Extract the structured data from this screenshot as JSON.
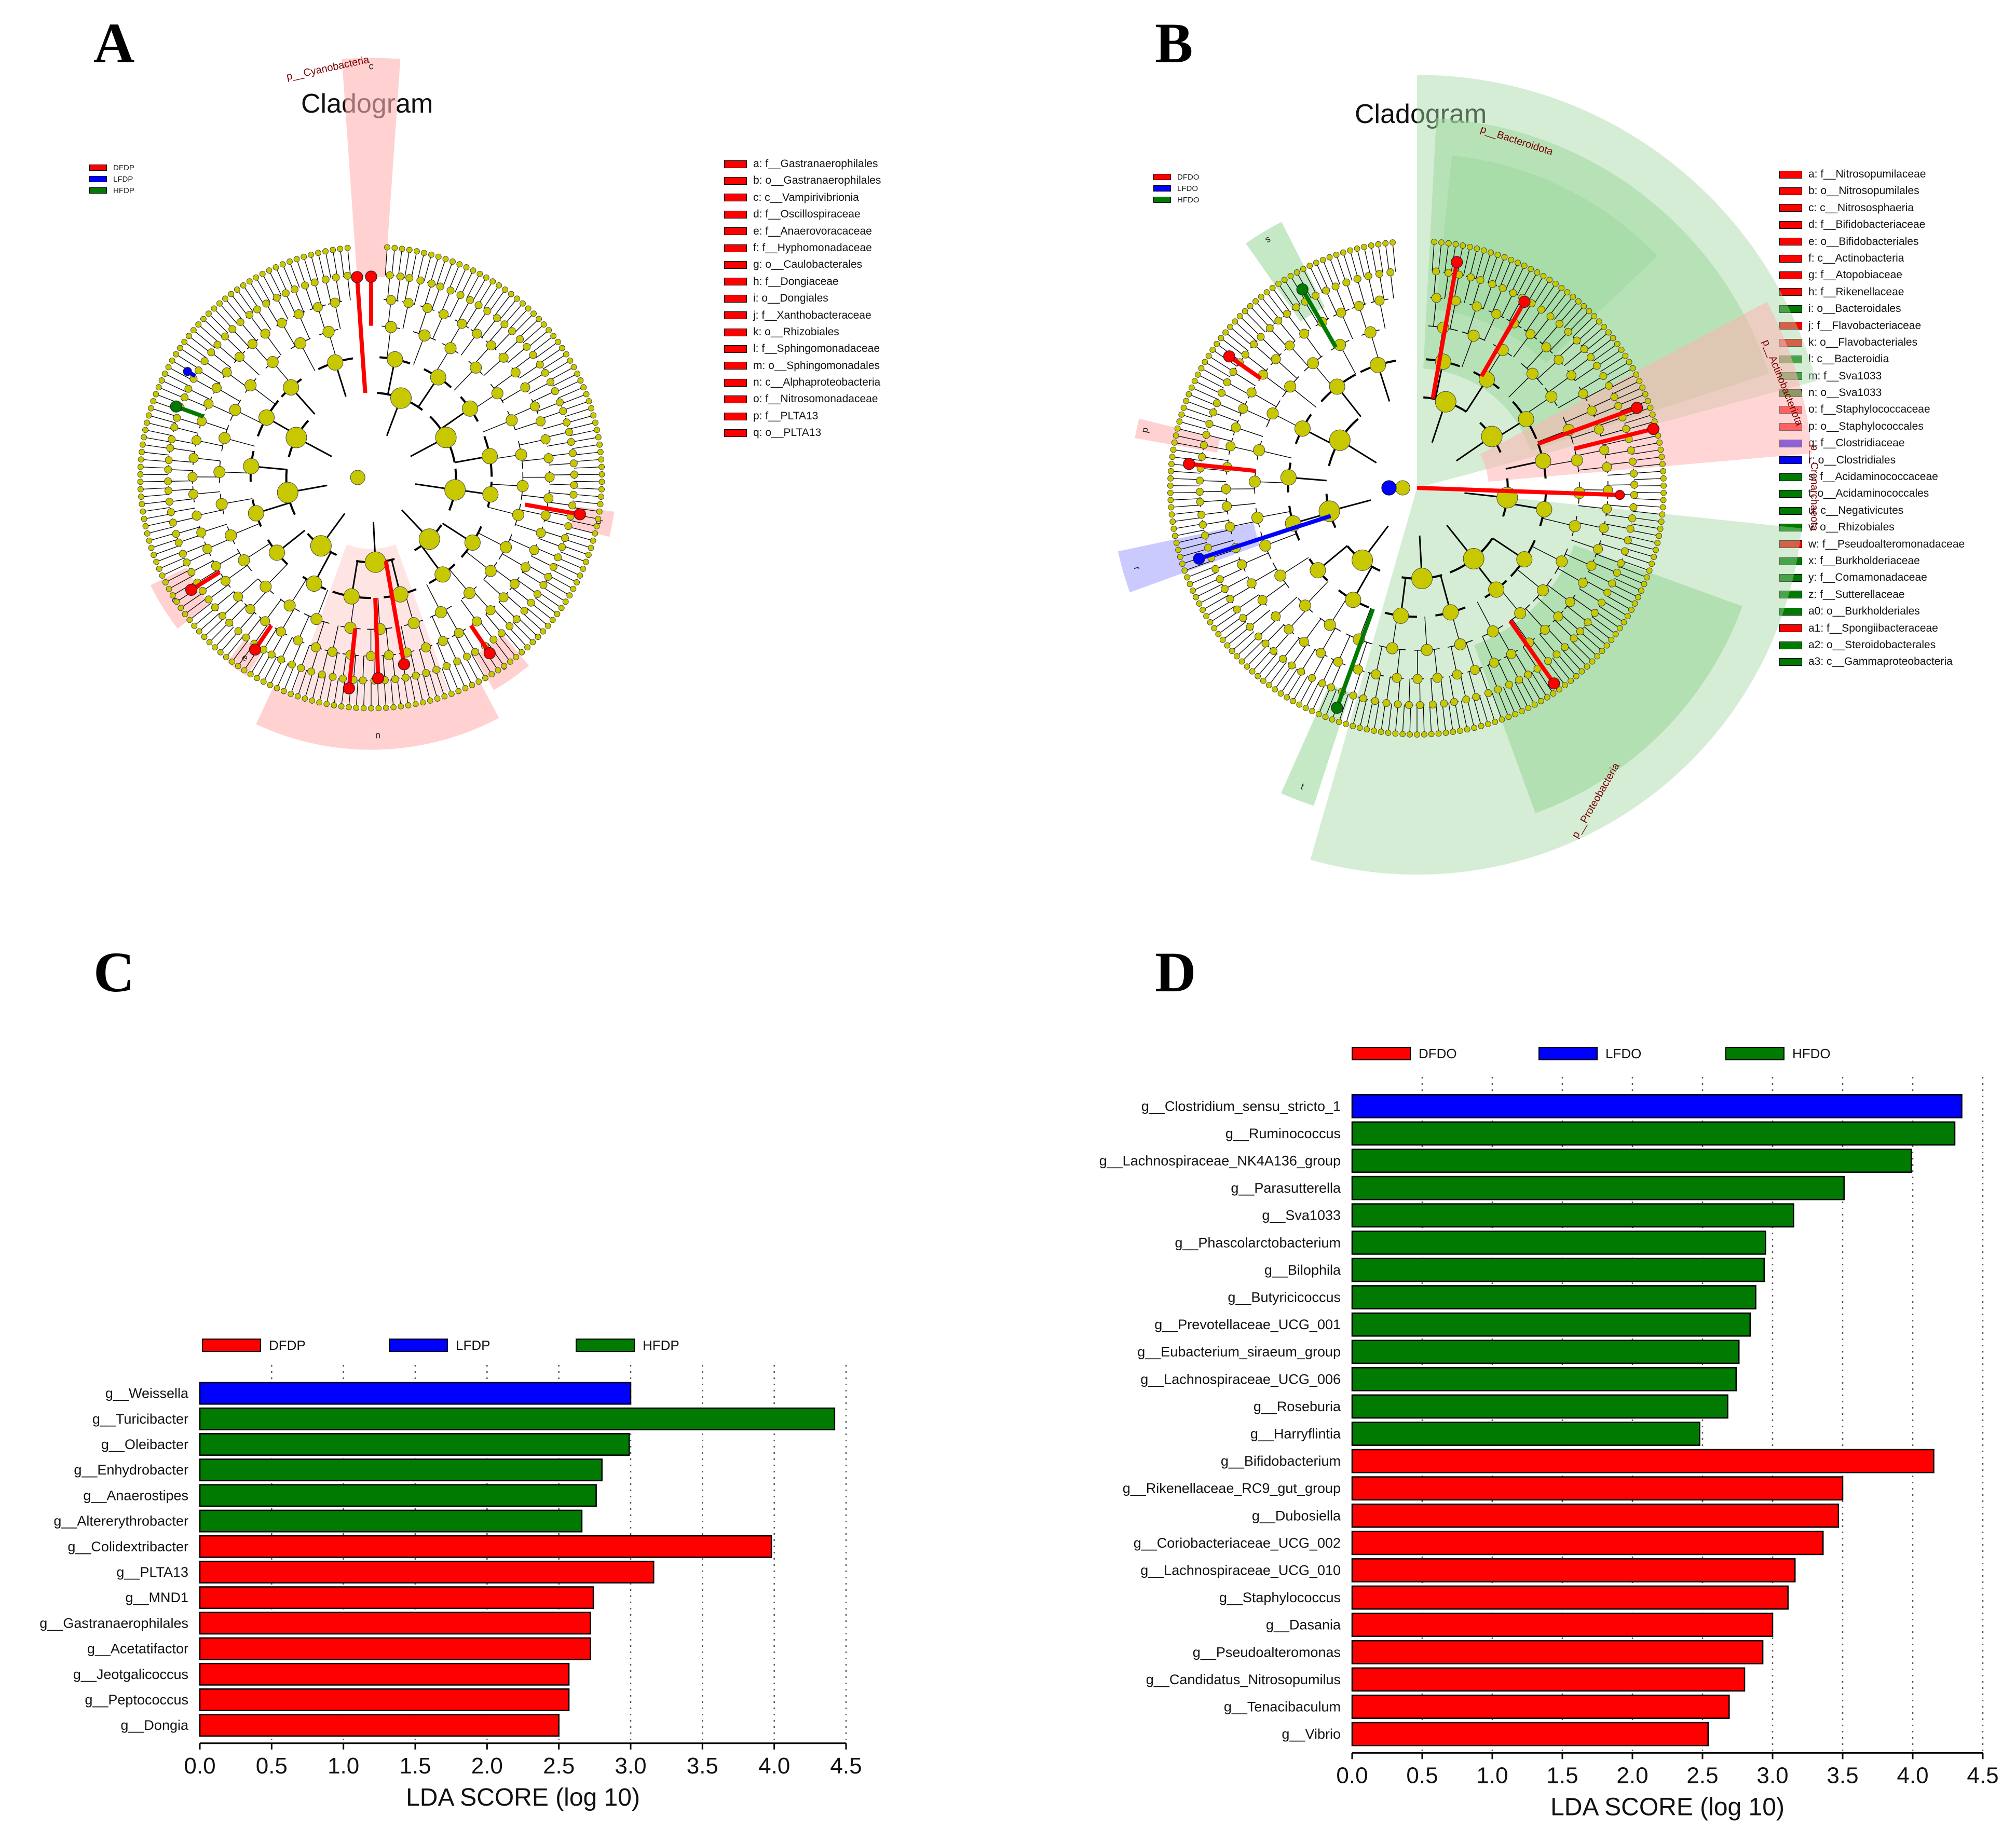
{
  "colors": {
    "red": "#ff0000",
    "blue": "#0000ff",
    "green": "#007a00",
    "node_yellow": "#c8c800",
    "shade_red": "#ffb3b3",
    "shade_green": "#9fd89f",
    "shade_blue": "#b3b3ff"
  },
  "panels": {
    "A": {
      "letter": "A",
      "title": "Cladogram",
      "groups": [
        {
          "label": "DFDP",
          "color": "#ff0000"
        },
        {
          "label": "LFDP",
          "color": "#0000ff"
        },
        {
          "label": "HFDP",
          "color": "#007a00"
        }
      ],
      "phylum_labels": [
        "p__Cyanobacteria"
      ],
      "key": [
        {
          "text": "a: f__Gastranaerophilales",
          "color": "#ff0000"
        },
        {
          "text": "b: o__Gastranaerophilales",
          "color": "#ff0000"
        },
        {
          "text": "c: c__Vampirivibrionia",
          "color": "#ff0000"
        },
        {
          "text": "d: f__Oscillospiraceae",
          "color": "#ff0000"
        },
        {
          "text": "e: f__Anaerovoracaceae",
          "color": "#ff0000"
        },
        {
          "text": "f: f__Hyphomonadaceae",
          "color": "#ff0000"
        },
        {
          "text": "g: o__Caulobacterales",
          "color": "#ff0000"
        },
        {
          "text": "h: f__Dongiaceae",
          "color": "#ff0000"
        },
        {
          "text": "i: o__Dongiales",
          "color": "#ff0000"
        },
        {
          "text": "j: f__Xanthobacteraceae",
          "color": "#ff0000"
        },
        {
          "text": "k: o__Rhizobiales",
          "color": "#ff0000"
        },
        {
          "text": "l: f__Sphingomonadaceae",
          "color": "#ff0000"
        },
        {
          "text": "m: o__Sphingomonadales",
          "color": "#ff0000"
        },
        {
          "text": "n: c__Alphaproteobacteria",
          "color": "#ff0000"
        },
        {
          "text": "o: f__Nitrosomonadaceae",
          "color": "#ff0000"
        },
        {
          "text": "p: f__PLTA13",
          "color": "#ff0000"
        },
        {
          "text": "q: o__PLTA13",
          "color": "#ff0000"
        }
      ]
    },
    "B": {
      "letter": "B",
      "title": "Cladogram",
      "groups": [
        {
          "label": "DFDO",
          "color": "#ff0000"
        },
        {
          "label": "LFDO",
          "color": "#0000ff"
        },
        {
          "label": "HFDO",
          "color": "#007a00"
        }
      ],
      "phylum_labels": [
        "p__Bacteroidota",
        "p__Actinobacteriota",
        "p__Crenarchaeota",
        "p__Proteobacteria"
      ],
      "key": [
        {
          "text": "a: f__Nitrosopumilaceae",
          "color": "#ff0000"
        },
        {
          "text": "b: o__Nitrosopumilales",
          "color": "#ff0000"
        },
        {
          "text": "c: c__Nitrososphaeria",
          "color": "#ff0000"
        },
        {
          "text": "d: f__Bifidobacteriaceae",
          "color": "#ff0000"
        },
        {
          "text": "e: o__Bifidobacteriales",
          "color": "#ff0000"
        },
        {
          "text": "f: c__Actinobacteria",
          "color": "#ff0000"
        },
        {
          "text": "g: f__Atopobiaceae",
          "color": "#ff0000"
        },
        {
          "text": "h: f__Rikenellaceae",
          "color": "#ff0000"
        },
        {
          "text": "i: o__Bacteroidales",
          "color": "#007a00"
        },
        {
          "text": "j: f__Flavobacteriaceae",
          "color": "#ff0000"
        },
        {
          "text": "k: o__Flavobacteriales",
          "color": "#ff0000"
        },
        {
          "text": "l: c__Bacteroidia",
          "color": "#007a00"
        },
        {
          "text": "m: f__Sva1033",
          "color": "#007a00"
        },
        {
          "text": "n: o__Sva1033",
          "color": "#007a00"
        },
        {
          "text": "o: f__Staphylococcaceae",
          "color": "#ff0000"
        },
        {
          "text": "p: o__Staphylococcales",
          "color": "#ff0000"
        },
        {
          "text": "q: f__Clostridiaceae",
          "color": "#0000ff"
        },
        {
          "text": "r: o__Clostridiales",
          "color": "#0000ff"
        },
        {
          "text": "s: f__Acidaminococcaceae",
          "color": "#007a00"
        },
        {
          "text": "t: o__Acidaminococcales",
          "color": "#007a00"
        },
        {
          "text": "u: c__Negativicutes",
          "color": "#007a00"
        },
        {
          "text": "v: o__Rhizobiales",
          "color": "#007a00"
        },
        {
          "text": "w: f__Pseudoalteromonadaceae",
          "color": "#ff0000"
        },
        {
          "text": "x: f__Burkholderiaceae",
          "color": "#007a00"
        },
        {
          "text": "y: f__Comamonadaceae",
          "color": "#007a00"
        },
        {
          "text": "z: f__Sutterellaceae",
          "color": "#007a00"
        },
        {
          "text": "a0: o__Burkholderiales",
          "color": "#007a00"
        },
        {
          "text": "a1: f__Spongiibacteraceae",
          "color": "#ff0000"
        },
        {
          "text": "a2: o__Steroidobacterales",
          "color": "#007a00"
        },
        {
          "text": "a3: c__Gammaproteobacteria",
          "color": "#007a00"
        }
      ]
    },
    "C": {
      "letter": "C"
    },
    "D": {
      "letter": "D"
    }
  },
  "chart_data": [
    {
      "type": "bar",
      "orientation": "horizontal",
      "panel": "C",
      "xlabel": "LDA SCORE (log 10)",
      "xlim": [
        0,
        4.5
      ],
      "xticks": [
        "0.0",
        "0.5",
        "1.0",
        "1.5",
        "2.0",
        "2.5",
        "3.0",
        "3.5",
        "4.0",
        "4.5"
      ],
      "grid": "vertical dotted",
      "legend_placement": "top",
      "legend": [
        {
          "label": "DFDP",
          "color": "#ff0000"
        },
        {
          "label": "LFDP",
          "color": "#0000ff"
        },
        {
          "label": "HFDP",
          "color": "#007a00"
        }
      ],
      "bars": [
        {
          "label": "g__Weissella",
          "value": 3.0,
          "group": "LFDP"
        },
        {
          "label": "g__Turicibacter",
          "value": 4.42,
          "group": "HFDP"
        },
        {
          "label": "g__Oleibacter",
          "value": 2.99,
          "group": "HFDP"
        },
        {
          "label": "g__Enhydrobacter",
          "value": 2.8,
          "group": "HFDP"
        },
        {
          "label": "g__Anaerostipes",
          "value": 2.76,
          "group": "HFDP"
        },
        {
          "label": "g__Altererythrobacter",
          "value": 2.66,
          "group": "HFDP"
        },
        {
          "label": "g__Colidextribacter",
          "value": 3.98,
          "group": "DFDP"
        },
        {
          "label": "g__PLTA13",
          "value": 3.16,
          "group": "DFDP"
        },
        {
          "label": "g__MND1",
          "value": 2.74,
          "group": "DFDP"
        },
        {
          "label": "g__Gastranaerophilales",
          "value": 2.72,
          "group": "DFDP"
        },
        {
          "label": "g__Acetatifactor",
          "value": 2.72,
          "group": "DFDP"
        },
        {
          "label": "g__Jeotgalicoccus",
          "value": 2.57,
          "group": "DFDP"
        },
        {
          "label": "g__Peptococcus",
          "value": 2.57,
          "group": "DFDP"
        },
        {
          "label": "g__Dongia",
          "value": 2.5,
          "group": "DFDP"
        }
      ]
    },
    {
      "type": "bar",
      "orientation": "horizontal",
      "panel": "D",
      "xlabel": "LDA SCORE (log 10)",
      "xlim": [
        0,
        4.5
      ],
      "xticks": [
        "0.0",
        "0.5",
        "1.0",
        "1.5",
        "2.0",
        "2.5",
        "3.0",
        "3.5",
        "4.0",
        "4.5"
      ],
      "grid": "vertical dotted",
      "legend_placement": "top",
      "legend": [
        {
          "label": "DFDO",
          "color": "#ff0000"
        },
        {
          "label": "LFDO",
          "color": "#0000ff"
        },
        {
          "label": "HFDO",
          "color": "#007a00"
        }
      ],
      "bars": [
        {
          "label": "g__Clostridium_sensu_stricto_1",
          "value": 4.35,
          "group": "LFDO"
        },
        {
          "label": "g__Ruminococcus",
          "value": 4.3,
          "group": "HFDO"
        },
        {
          "label": "g__Lachnospiraceae_NK4A136_group",
          "value": 3.99,
          "group": "HFDO"
        },
        {
          "label": "g__Parasutterella",
          "value": 3.51,
          "group": "HFDO"
        },
        {
          "label": "g__Sva1033",
          "value": 3.15,
          "group": "HFDO"
        },
        {
          "label": "g__Phascolarctobacterium",
          "value": 2.95,
          "group": "HFDO"
        },
        {
          "label": "g__Bilophila",
          "value": 2.94,
          "group": "HFDO"
        },
        {
          "label": "g__Butyricicoccus",
          "value": 2.88,
          "group": "HFDO"
        },
        {
          "label": "g__Prevotellaceae_UCG_001",
          "value": 2.84,
          "group": "HFDO"
        },
        {
          "label": "g__Eubacterium_siraeum_group",
          "value": 2.76,
          "group": "HFDO"
        },
        {
          "label": "g__Lachnospiraceae_UCG_006",
          "value": 2.74,
          "group": "HFDO"
        },
        {
          "label": "g__Roseburia",
          "value": 2.68,
          "group": "HFDO"
        },
        {
          "label": "g__Harryflintia",
          "value": 2.48,
          "group": "HFDO"
        },
        {
          "label": "g__Bifidobacterium",
          "value": 4.15,
          "group": "DFDO"
        },
        {
          "label": "g__Rikenellaceae_RC9_gut_group",
          "value": 3.5,
          "group": "DFDO"
        },
        {
          "label": "g__Dubosiella",
          "value": 3.47,
          "group": "DFDO"
        },
        {
          "label": "g__Coriobacteriaceae_UCG_002",
          "value": 3.36,
          "group": "DFDO"
        },
        {
          "label": "g__Lachnospiraceae_UCG_010",
          "value": 3.16,
          "group": "DFDO"
        },
        {
          "label": "g__Staphylococcus",
          "value": 3.11,
          "group": "DFDO"
        },
        {
          "label": "g__Dasania",
          "value": 3.0,
          "group": "DFDO"
        },
        {
          "label": "g__Pseudoalteromonas",
          "value": 2.93,
          "group": "DFDO"
        },
        {
          "label": "g__Candidatus_Nitrosopumilus",
          "value": 2.8,
          "group": "DFDO"
        },
        {
          "label": "g__Tenacibaculum",
          "value": 2.69,
          "group": "DFDO"
        },
        {
          "label": "g__Vibrio",
          "value": 2.54,
          "group": "DFDO"
        }
      ]
    }
  ]
}
